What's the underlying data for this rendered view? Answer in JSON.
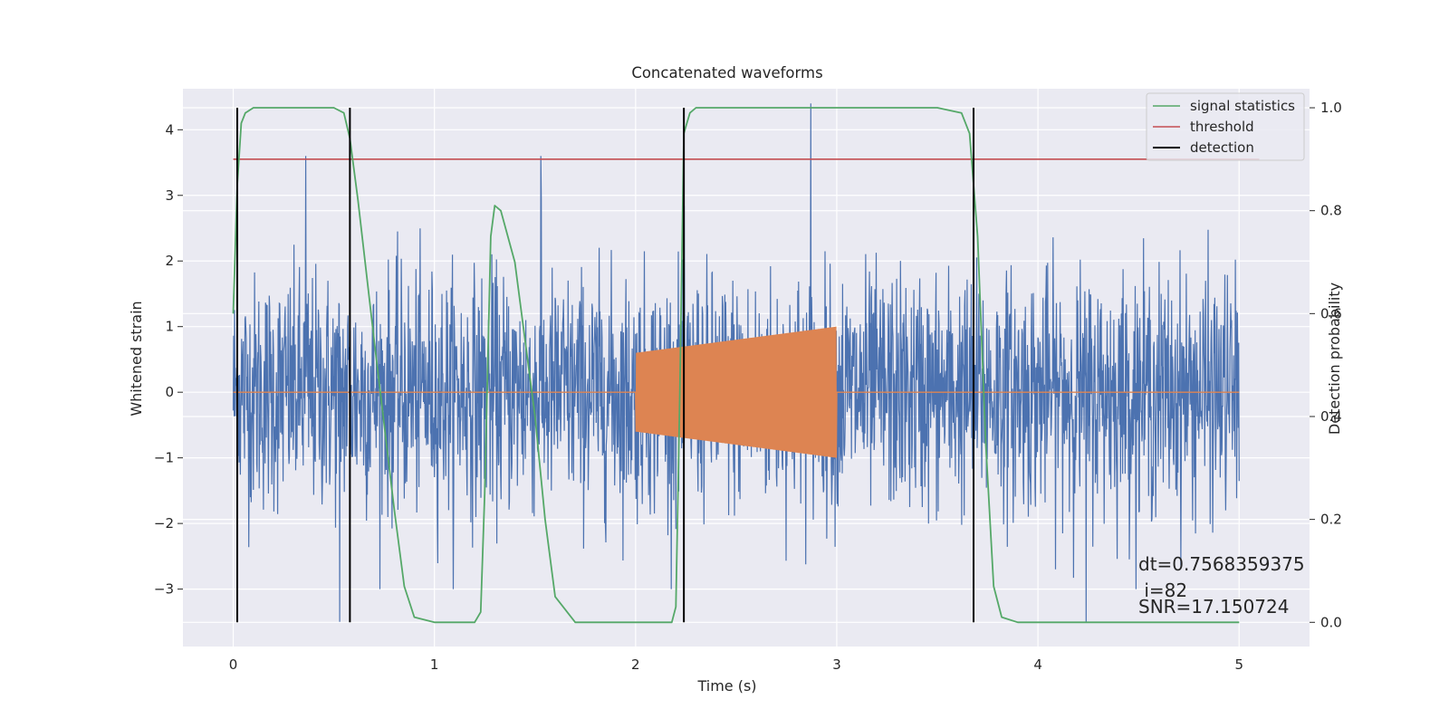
{
  "colors": {
    "background": "#eaeaf2",
    "grid": "#ffffff",
    "strain": "#4c72b0",
    "injection": "#dd8452",
    "signal_statistics": "#55a868",
    "threshold": "#c44e52",
    "detection": "#000000"
  },
  "chart_data": {
    "type": "line",
    "title": "Concatenated waveforms",
    "xlabel": "Time (s)",
    "ylabel_left": "Whitened strain",
    "ylabel_right": "Detection probability",
    "xlim": [
      -0.25,
      5.35
    ],
    "ylim_left": [
      -3.875,
      4.625
    ],
    "ylim_right": [
      -0.047,
      1.037
    ],
    "x_ticks": [
      0,
      1,
      2,
      3,
      4,
      5
    ],
    "y_left_ticks": [
      -3,
      -2,
      -1,
      0,
      1,
      2,
      3,
      4
    ],
    "y_right_ticks": [
      0.0,
      0.2,
      0.4,
      0.6,
      0.8,
      1.0
    ],
    "grid": true,
    "legend_position": "top-right",
    "legend": [
      {
        "label": "signal statistics",
        "series": "signal_statistics"
      },
      {
        "label": "threshold",
        "series": "threshold"
      },
      {
        "label": "detection",
        "series": "detection"
      }
    ],
    "whitened_strain": {
      "x_range": [
        0,
        5
      ],
      "typical_range": [
        -2,
        2
      ],
      "extremes": {
        "max": 4.4,
        "min": -3.5
      },
      "notable_peaks": [
        {
          "x": 0.53,
          "y": -3.5
        },
        {
          "x": 2.87,
          "y": 4.4
        },
        {
          "x": 4.24,
          "y": -3.5
        },
        {
          "x": 0.36,
          "y": 3.6
        },
        {
          "x": 1.53,
          "y": 3.6
        }
      ]
    },
    "injections": [
      {
        "x_range": [
          0,
          2
        ],
        "amplitude": 0
      },
      {
        "x_range": [
          2,
          3
        ],
        "amplitude_start": 0.6,
        "amplitude_end": 1.0
      },
      {
        "x_range": [
          3,
          5
        ],
        "amplitude": 0
      }
    ],
    "signal_statistics": {
      "x": [
        0.0,
        0.02,
        0.04,
        0.06,
        0.1,
        0.2,
        0.5,
        0.55,
        0.58,
        0.62,
        0.7,
        0.8,
        0.85,
        0.9,
        1.0,
        1.2,
        1.23,
        1.25,
        1.28,
        1.3,
        1.33,
        1.4,
        1.5,
        1.55,
        1.6,
        1.7,
        2.0,
        2.18,
        2.2,
        2.22,
        2.24,
        2.27,
        2.3,
        2.4,
        3.0,
        3.5,
        3.62,
        3.66,
        3.7,
        3.74,
        3.78,
        3.82,
        3.9,
        4.5,
        4.9,
        5.0
      ],
      "y": [
        0.6,
        0.85,
        0.97,
        0.99,
        1.0,
        1.0,
        1.0,
        0.99,
        0.94,
        0.82,
        0.55,
        0.22,
        0.07,
        0.01,
        0.0,
        0.0,
        0.02,
        0.25,
        0.75,
        0.81,
        0.8,
        0.7,
        0.4,
        0.2,
        0.05,
        0.0,
        0.0,
        0.0,
        0.03,
        0.45,
        0.95,
        0.99,
        1.0,
        1.0,
        1.0,
        1.0,
        0.99,
        0.95,
        0.75,
        0.35,
        0.07,
        0.01,
        0.0,
        0.0,
        0.0,
        0.0
      ]
    },
    "threshold": {
      "x_range": [
        0,
        5.1
      ],
      "value": 0.9
    },
    "detections": [
      0.02,
      0.58,
      2.24,
      3.68
    ],
    "detection_span": [
      0,
      1
    ]
  },
  "annotations": {
    "dt": "dt=0.7568359375",
    "i": " i=82",
    "snr": "SNR=17.150724"
  }
}
